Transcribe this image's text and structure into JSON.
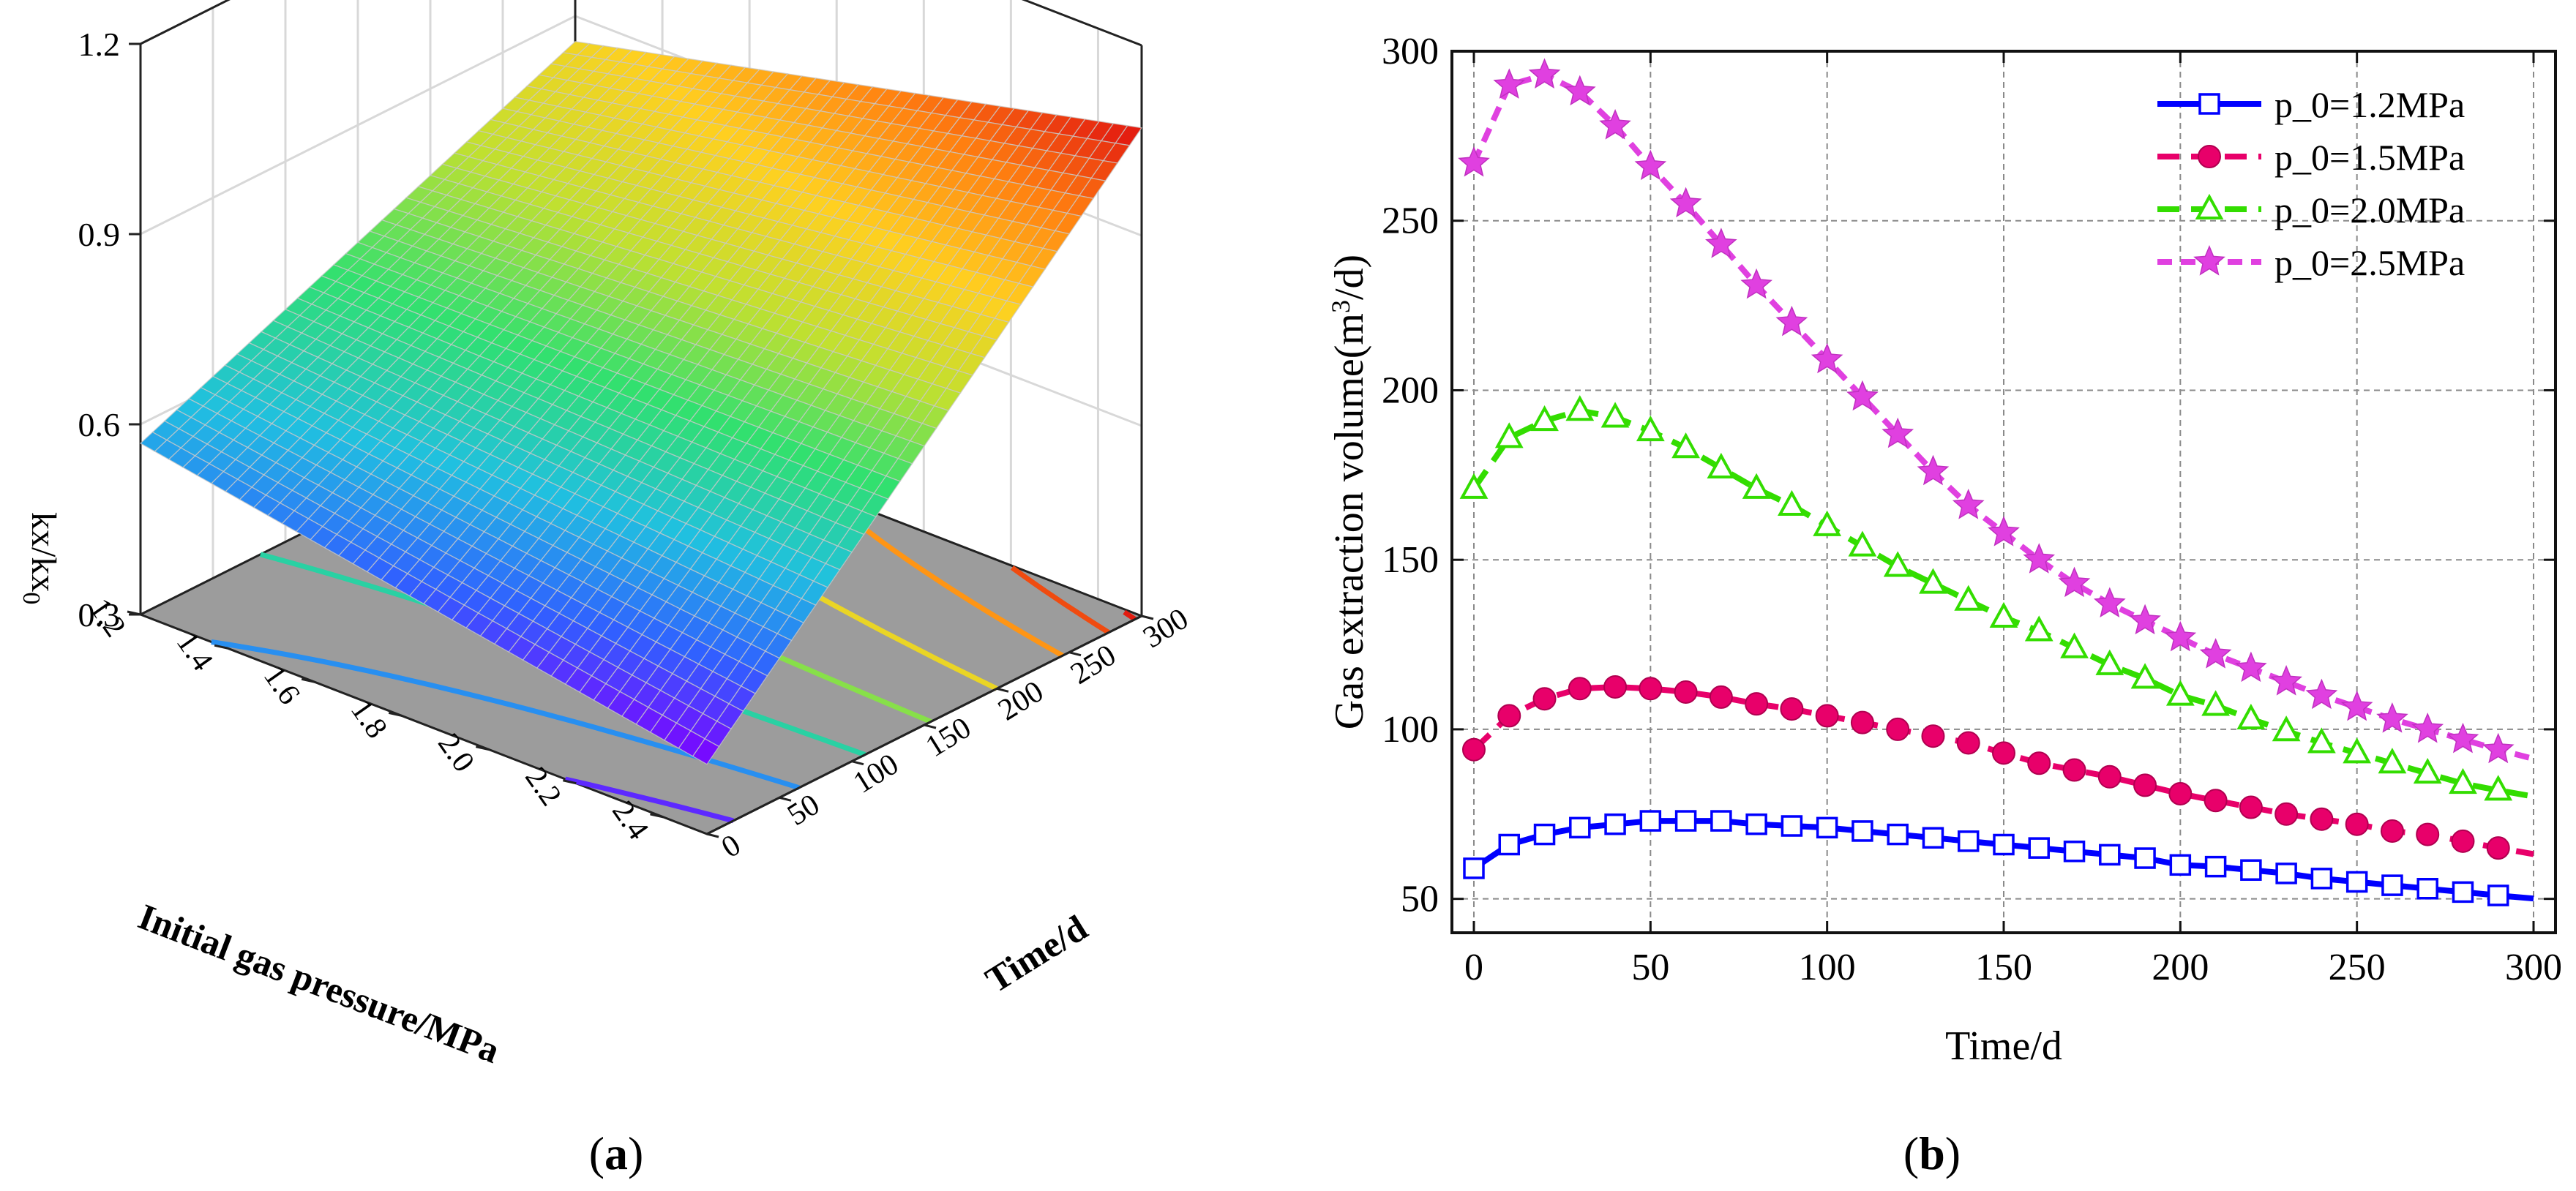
{
  "chart_data": [
    {
      "type": "surface3d",
      "panel_label": "(a)",
      "panel_letter": "a",
      "title": "",
      "zlabel_main": "kx/kx",
      "zlabel_sub": "0",
      "xlabel": "Initial gas pressure/MPa",
      "ylabel": "Time/d",
      "x_ticks": [
        "1.2",
        "1.4",
        "1.6",
        "1.8",
        "2.0",
        "2.2",
        "2.4"
      ],
      "x_range": [
        1.2,
        2.5
      ],
      "y_ticks": [
        "0",
        "50",
        "100",
        "150",
        "200",
        "250",
        "300"
      ],
      "y_range": [
        0,
        300
      ],
      "z_ticks": [
        "0.3",
        "0.6",
        "0.9",
        "1.2"
      ],
      "z_range": [
        0.3,
        1.2
      ],
      "corner_values": {
        "p1.2_t0": 0.57,
        "p2.5_t0": 0.41,
        "p1.2_t300": 0.86,
        "p2.5_t300": 1.07
      },
      "colormap": [
        "#7f00ff",
        "#3060ff",
        "#20c0e0",
        "#30e070",
        "#c0e030",
        "#ffd020",
        "#ff7f10",
        "#e01010"
      ]
    },
    {
      "type": "line",
      "panel_label": "(b)",
      "panel_letter": "b",
      "title": "",
      "xlabel": "Time/d",
      "ylabel": "Gas extraction volume(m³/d)",
      "ylabel_pre": "Gas extraction volume(m",
      "ylabel_sup": "3",
      "ylabel_post": "/d)",
      "xlim": [
        0,
        300
      ],
      "ylim": [
        40,
        300
      ],
      "x_ticks": [
        "0",
        "50",
        "100",
        "150",
        "200",
        "250",
        "300"
      ],
      "y_ticks": [
        "50",
        "100",
        "150",
        "200",
        "250",
        "300"
      ],
      "grid": true,
      "legend_position": "top-right",
      "x": [
        0,
        10,
        20,
        30,
        40,
        50,
        60,
        70,
        80,
        90,
        100,
        110,
        120,
        130,
        140,
        150,
        160,
        170,
        180,
        190,
        200,
        210,
        220,
        230,
        240,
        250,
        260,
        270,
        280,
        290
      ],
      "series": [
        {
          "name": "p_0=1.2MPa",
          "color": "#0000ff",
          "marker": "square",
          "dash": "solid",
          "values": [
            59,
            66,
            69,
            71,
            72,
            73,
            73,
            73,
            72,
            71.5,
            71,
            70,
            69,
            68,
            67,
            66,
            65,
            64,
            63,
            62,
            60,
            59.5,
            58.5,
            57.5,
            56,
            55,
            54,
            53,
            52,
            51
          ]
        },
        {
          "name": "p_0=1.5MPa",
          "color": "#e8006a",
          "marker": "circle",
          "dash": "dash",
          "values": [
            94,
            104,
            109,
            112,
            112.5,
            112,
            111,
            109.5,
            107.5,
            106,
            104,
            102,
            100,
            98,
            96,
            93,
            90,
            88,
            86,
            83.5,
            81,
            79,
            77,
            75,
            73.5,
            72,
            70,
            69,
            67,
            65
          ]
        },
        {
          "name": "p_0=2.0MPa",
          "color": "#33dd00",
          "marker": "triangle",
          "dash": "dash",
          "values": [
            171,
            186,
            191,
            194,
            192,
            188,
            183,
            177,
            171,
            166,
            160,
            154,
            148,
            143,
            138,
            133,
            129,
            124,
            119,
            115,
            110,
            107,
            103,
            99.5,
            96,
            93,
            90,
            87,
            84,
            82
          ]
        },
        {
          "name": "p_0=2.5MPa",
          "color": "#e040e0",
          "marker": "star",
          "dash": "shortdash",
          "values": [
            267,
            290,
            293,
            288,
            278,
            266,
            255,
            243,
            231,
            220,
            209,
            198,
            187,
            176,
            166,
            158,
            150,
            143,
            137,
            132,
            127,
            122,
            118,
            114,
            110,
            106.5,
            103,
            100,
            97,
            94
          ]
        }
      ]
    }
  ]
}
